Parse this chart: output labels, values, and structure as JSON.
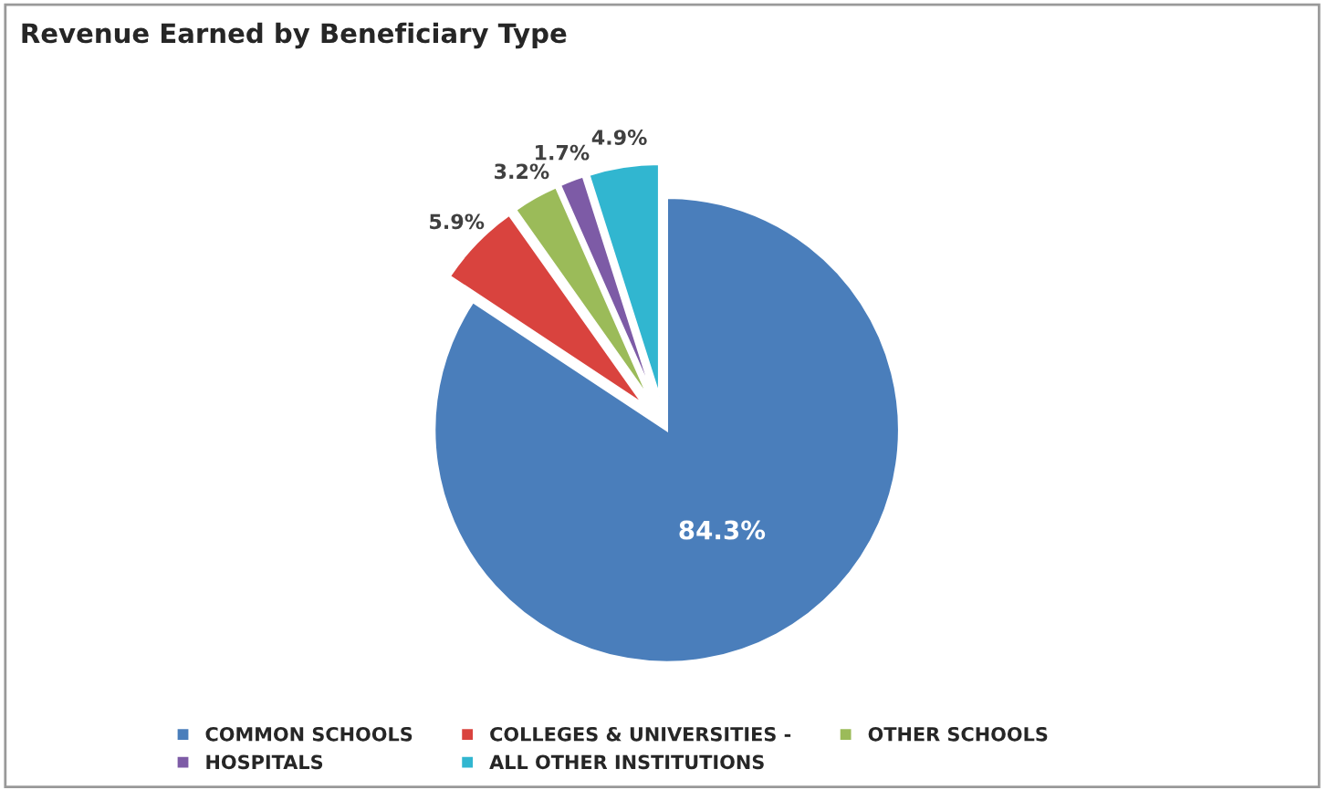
{
  "chart_data": {
    "type": "pie",
    "title": "Revenue Earned by Beneficiary Type",
    "categories": [
      "COMMON SCHOOLS",
      "COLLEGES & UNIVERSITIES -",
      "OTHER SCHOOLS",
      "HOSPITALS",
      "ALL OTHER INSTITUTIONS"
    ],
    "values": [
      84.3,
      5.9,
      3.2,
      1.7,
      4.9
    ],
    "value_labels": [
      "84.3%",
      "5.9%",
      "3.2%",
      "1.7%",
      "4.9%"
    ],
    "colors": [
      "#4a7ebb",
      "#d9433e",
      "#9bbb59",
      "#7d5ba6",
      "#31b6d0"
    ],
    "legend": "bottom"
  }
}
